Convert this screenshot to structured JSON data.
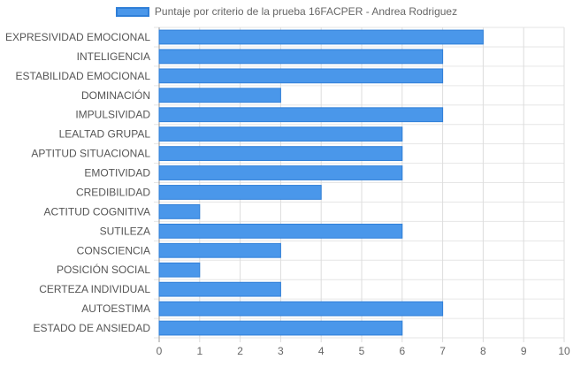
{
  "chart_data": {
    "type": "bar",
    "orientation": "horizontal",
    "categories": [
      "EXPRESIVIDAD EMOCIONAL",
      "INTELIGENCIA",
      "ESTABILIDAD EMOCIONAL",
      "DOMINACIÓN",
      "IMPULSIVIDAD",
      "LEALTAD GRUPAL",
      "APTITUD SITUACIONAL",
      "EMOTIVIDAD",
      "CREDIBILIDAD",
      "ACTITUD COGNITIVA",
      "SUTILEZA",
      "CONSCIENCIA",
      "POSICIÓN SOCIAL",
      "CERTEZA INDIVIDUAL",
      "AUTOESTIMA",
      "ESTADO DE ANSIEDAD"
    ],
    "series": [
      {
        "name": "Puntaje por criterio de la prueba 16FACPER - Andrea Rodriguez",
        "values": [
          8,
          7,
          7,
          3,
          7,
          6,
          6,
          6,
          4,
          1,
          6,
          3,
          1,
          3,
          7,
          6
        ],
        "color": "#4a97ea",
        "border_color": "#2f7fd8"
      }
    ],
    "xlim": [
      0,
      10
    ],
    "x_ticks": [
      "0",
      "1",
      "2",
      "3",
      "4",
      "5",
      "6",
      "7",
      "8",
      "9",
      "10"
    ],
    "grid": true,
    "legend_position": "top"
  }
}
